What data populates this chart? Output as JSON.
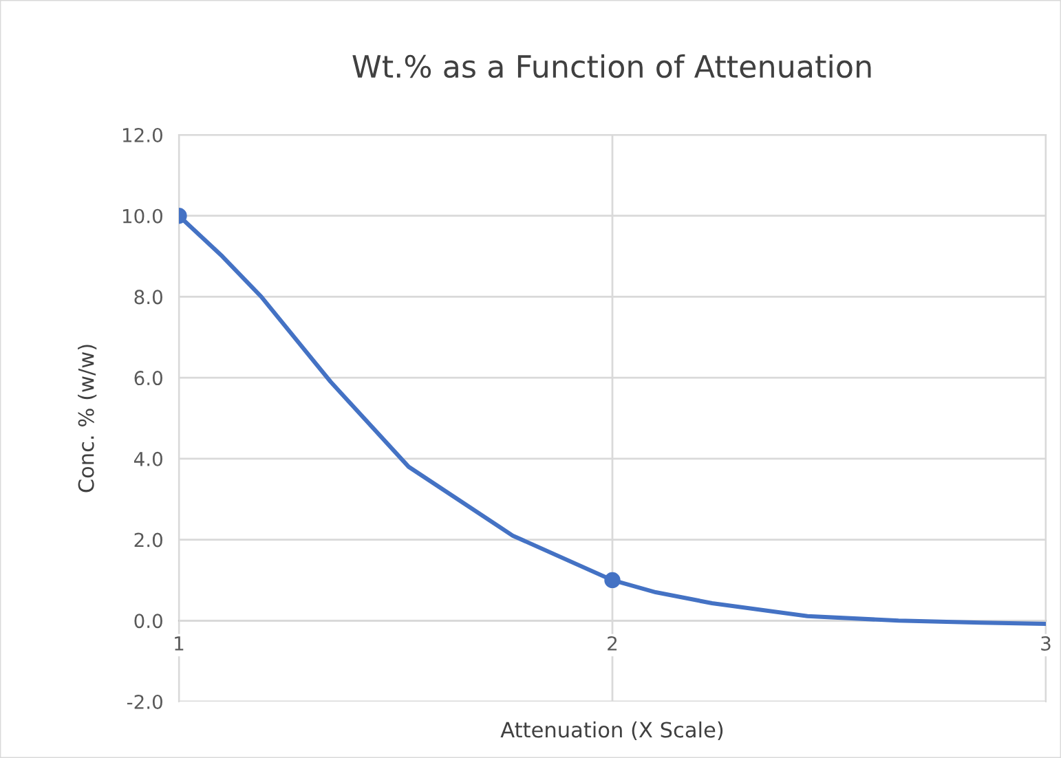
{
  "chart_data": {
    "type": "line",
    "title": "Wt.% as a Function of Attenuation",
    "xlabel": "Attenuation (X Scale)",
    "ylabel": "Conc. % (w/w)",
    "series": [
      {
        "type": "line",
        "color": "#4472c4",
        "marker": "none",
        "x": [
          1,
          1.1,
          1.19,
          1.35,
          1.53,
          1.77,
          2,
          2.1,
          2.23,
          2.45,
          2.66,
          2.85,
          3
        ],
        "values": [
          10,
          9.0,
          8.0,
          5.9,
          3.8,
          2.1,
          1.0,
          0.7,
          0.43,
          0.11,
          0.0,
          -0.05,
          -0.08
        ]
      },
      {
        "type": "scatter",
        "color": "#4472c4",
        "marker": "circle",
        "x": [
          1,
          2
        ],
        "values": [
          10,
          1
        ]
      }
    ],
    "xlim": [
      1,
      3
    ],
    "legend": false,
    "xticks": [
      1,
      2,
      3
    ],
    "ylim": [
      -2,
      12
    ],
    "yticks": [
      {
        "value": -2,
        "label": "-2.0"
      },
      {
        "value": 0,
        "label": "0.0"
      },
      {
        "value": 2,
        "label": "2.0"
      },
      {
        "value": 4,
        "label": "4.0"
      },
      {
        "value": 6,
        "label": "6.0"
      },
      {
        "value": 8,
        "label": "8.0"
      },
      {
        "value": 10,
        "label": "10.0"
      },
      {
        "value": 12,
        "label": "12.0"
      }
    ],
    "grid": true
  }
}
